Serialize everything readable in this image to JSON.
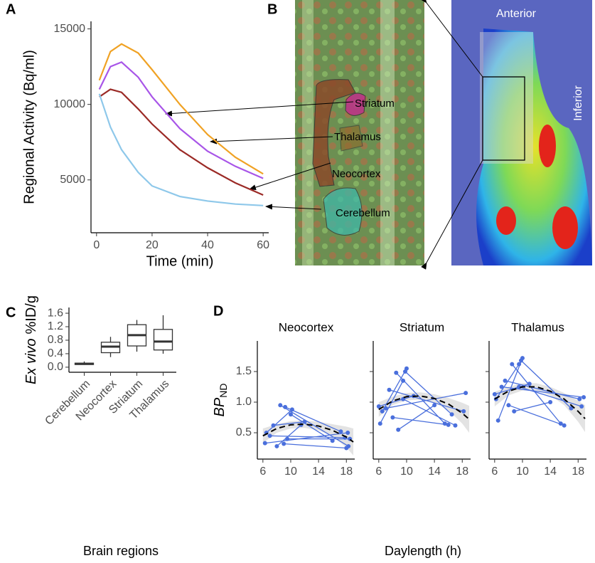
{
  "chart_data": [
    {
      "type": "line",
      "panel": "A",
      "ylabel": "Regional Activity (Bq/ml)",
      "xlabel": "Time (min)",
      "x": [
        1,
        5,
        9,
        15,
        20,
        30,
        40,
        50,
        60
      ],
      "series": [
        {
          "color": "#f0a224",
          "values": [
            11600,
            13500,
            14000,
            13400,
            12300,
            10000,
            8000,
            6500,
            5400
          ]
        },
        {
          "color": "#a855e8",
          "values": [
            11000,
            12500,
            12800,
            11800,
            10500,
            8400,
            6900,
            5900,
            5100
          ]
        },
        {
          "color": "#9b2a26",
          "values": [
            10500,
            11000,
            10800,
            9700,
            8700,
            7000,
            5800,
            4800,
            4000
          ]
        },
        {
          "color": "#8ec8ea",
          "values": [
            10700,
            8500,
            7000,
            5500,
            4600,
            3900,
            3600,
            3400,
            3300
          ]
        }
      ],
      "xlim": [
        -2,
        62
      ],
      "ylim": [
        1500,
        15500
      ],
      "xticks": [
        0,
        20,
        40,
        60
      ],
      "yticks": [
        5000,
        10000,
        15000
      ]
    },
    {
      "type": "box",
      "panel": "C",
      "ylabel_italic": "Ex vivo",
      "ylabel": "%ID/g",
      "xlabel": "Brain regions",
      "categories": [
        "Cerebellum",
        "Neocortex",
        "Striatum",
        "Thalamus"
      ],
      "boxes": [
        {
          "min": 0.07,
          "q1": 0.08,
          "median": 0.1,
          "q3": 0.12,
          "max": 0.17
        },
        {
          "min": 0.3,
          "q1": 0.43,
          "median": 0.61,
          "q3": 0.74,
          "max": 0.9
        },
        {
          "min": 0.46,
          "q1": 0.63,
          "median": 0.95,
          "q3": 1.26,
          "max": 1.4
        },
        {
          "min": 0.4,
          "q1": 0.51,
          "median": 0.76,
          "q3": 1.12,
          "max": 1.54
        }
      ],
      "ylim": [
        -0.15,
        1.77
      ],
      "yticks": [
        {
          "value": 0,
          "label": "0.0"
        },
        0.4,
        0.8,
        1.2,
        1.6
      ]
    },
    {
      "type": "line",
      "panel": "D",
      "ylabel": "BP",
      "ylabel_sub": "ND",
      "xlabel": "Daylength (h)",
      "point_color": "#4a6fdc",
      "fit_color": "#000000",
      "band_color": "#d9d9d9",
      "xlim": [
        5.2,
        19.2
      ],
      "ylim": [
        0.07,
        2.0
      ],
      "xticks": [
        6,
        10,
        14,
        18
      ],
      "yticks": [
        0.5,
        {
          "value": 1,
          "label": "1.0"
        },
        1.5
      ],
      "fit_x": [
        6,
        8,
        10,
        12,
        14,
        16,
        18,
        19
      ],
      "facets": [
        {
          "title": "Neocortex",
          "subjects": [
            {
              "x": [
                6.3,
                18.2
              ],
              "y": [
                0.33,
                0.5
              ]
            },
            {
              "x": [
                6.5,
                10.2
              ],
              "y": [
                0.5,
                0.88
              ]
            },
            {
              "x": [
                7.0,
                17.8
              ],
              "y": [
                0.45,
                0.42
              ]
            },
            {
              "x": [
                8.5,
                18.3
              ],
              "y": [
                0.95,
                0.28
              ]
            },
            {
              "x": [
                8.0,
                11.5
              ],
              "y": [
                0.28,
                0.63
              ]
            },
            {
              "x": [
                9.2,
                17.2
              ],
              "y": [
                0.92,
                0.52
              ]
            },
            {
              "x": [
                9.5,
                18.5
              ],
              "y": [
                0.4,
                0.4
              ]
            },
            {
              "x": [
                10.0,
                16.0
              ],
              "y": [
                0.8,
                0.37
              ]
            },
            {
              "x": [
                9.0,
                18.0
              ],
              "y": [
                0.32,
                0.25
              ]
            },
            {
              "x": [
                7.5,
                12.0
              ],
              "y": [
                0.62,
                0.68
              ]
            }
          ],
          "fit": [
            0.45,
            0.57,
            0.63,
            0.64,
            0.61,
            0.54,
            0.43,
            0.35
          ],
          "lower": [
            0.33,
            0.5,
            0.57,
            0.58,
            0.54,
            0.44,
            0.26,
            0.13
          ],
          "upper": [
            0.57,
            0.64,
            0.69,
            0.7,
            0.68,
            0.64,
            0.6,
            0.57
          ]
        },
        {
          "title": "Striatum",
          "subjects": [
            {
              "x": [
                6.2,
                9.5
              ],
              "y": [
                0.65,
                1.35
              ]
            },
            {
              "x": [
                6.5,
                10.0
              ],
              "y": [
                0.85,
                1.55
              ]
            },
            {
              "x": [
                7.0,
                18.5
              ],
              "y": [
                0.9,
                1.15
              ]
            },
            {
              "x": [
                8.5,
                15.5
              ],
              "y": [
                1.48,
                0.65
              ]
            },
            {
              "x": [
                7.5,
                18.2
              ],
              "y": [
                1.2,
                0.85
              ]
            },
            {
              "x": [
                8.0,
                16.0
              ],
              "y": [
                0.75,
                0.63
              ]
            },
            {
              "x": [
                9.8,
                16.5
              ],
              "y": [
                1.5,
                0.8
              ]
            },
            {
              "x": [
                6.0,
                11.0
              ],
              "y": [
                0.93,
                1.1
              ]
            },
            {
              "x": [
                8.8,
                14.0
              ],
              "y": [
                0.55,
                0.95
              ]
            },
            {
              "x": [
                9.5,
                17.0
              ],
              "y": [
                1.05,
                0.62
              ]
            }
          ],
          "fit": [
            0.88,
            1.02,
            1.09,
            1.1,
            1.06,
            0.97,
            0.82,
            0.72
          ],
          "lower": [
            0.76,
            0.95,
            1.03,
            1.04,
            0.99,
            0.87,
            0.65,
            0.5
          ],
          "upper": [
            1.0,
            1.09,
            1.15,
            1.16,
            1.13,
            1.07,
            0.99,
            0.94
          ]
        },
        {
          "title": "Thalamus",
          "subjects": [
            {
              "x": [
                6.2,
                9.5
              ],
              "y": [
                1.05,
                1.62
              ]
            },
            {
              "x": [
                6.5,
                10.0
              ],
              "y": [
                0.7,
                1.72
              ]
            },
            {
              "x": [
                7.0,
                18.8
              ],
              "y": [
                1.25,
                1.08
              ]
            },
            {
              "x": [
                8.5,
                15.5
              ],
              "y": [
                1.62,
                0.65
              ]
            },
            {
              "x": [
                7.5,
                18.2
              ],
              "y": [
                1.35,
                1.05
              ]
            },
            {
              "x": [
                8.0,
                16.0
              ],
              "y": [
                0.95,
                0.62
              ]
            },
            {
              "x": [
                9.8,
                17.0
              ],
              "y": [
                1.68,
                0.9
              ]
            },
            {
              "x": [
                6.0,
                11.0
              ],
              "y": [
                1.13,
                1.3
              ]
            },
            {
              "x": [
                8.8,
                14.0
              ],
              "y": [
                0.85,
                1.0
              ]
            },
            {
              "x": [
                9.5,
                18.5
              ],
              "y": [
                1.25,
                0.93
              ]
            }
          ],
          "fit": [
            1.05,
            1.18,
            1.25,
            1.25,
            1.18,
            1.05,
            0.85,
            0.73
          ],
          "lower": [
            0.93,
            1.11,
            1.19,
            1.19,
            1.11,
            0.95,
            0.68,
            0.51
          ],
          "upper": [
            1.17,
            1.25,
            1.31,
            1.31,
            1.25,
            1.15,
            1.02,
            0.95
          ]
        }
      ]
    }
  ],
  "image_panel": {
    "panel": "B",
    "regions": [
      "Striatum",
      "Thalamus",
      "Neocortex",
      "Cerebellum"
    ],
    "anterior": "Anterior",
    "inferior": "Inferior"
  }
}
